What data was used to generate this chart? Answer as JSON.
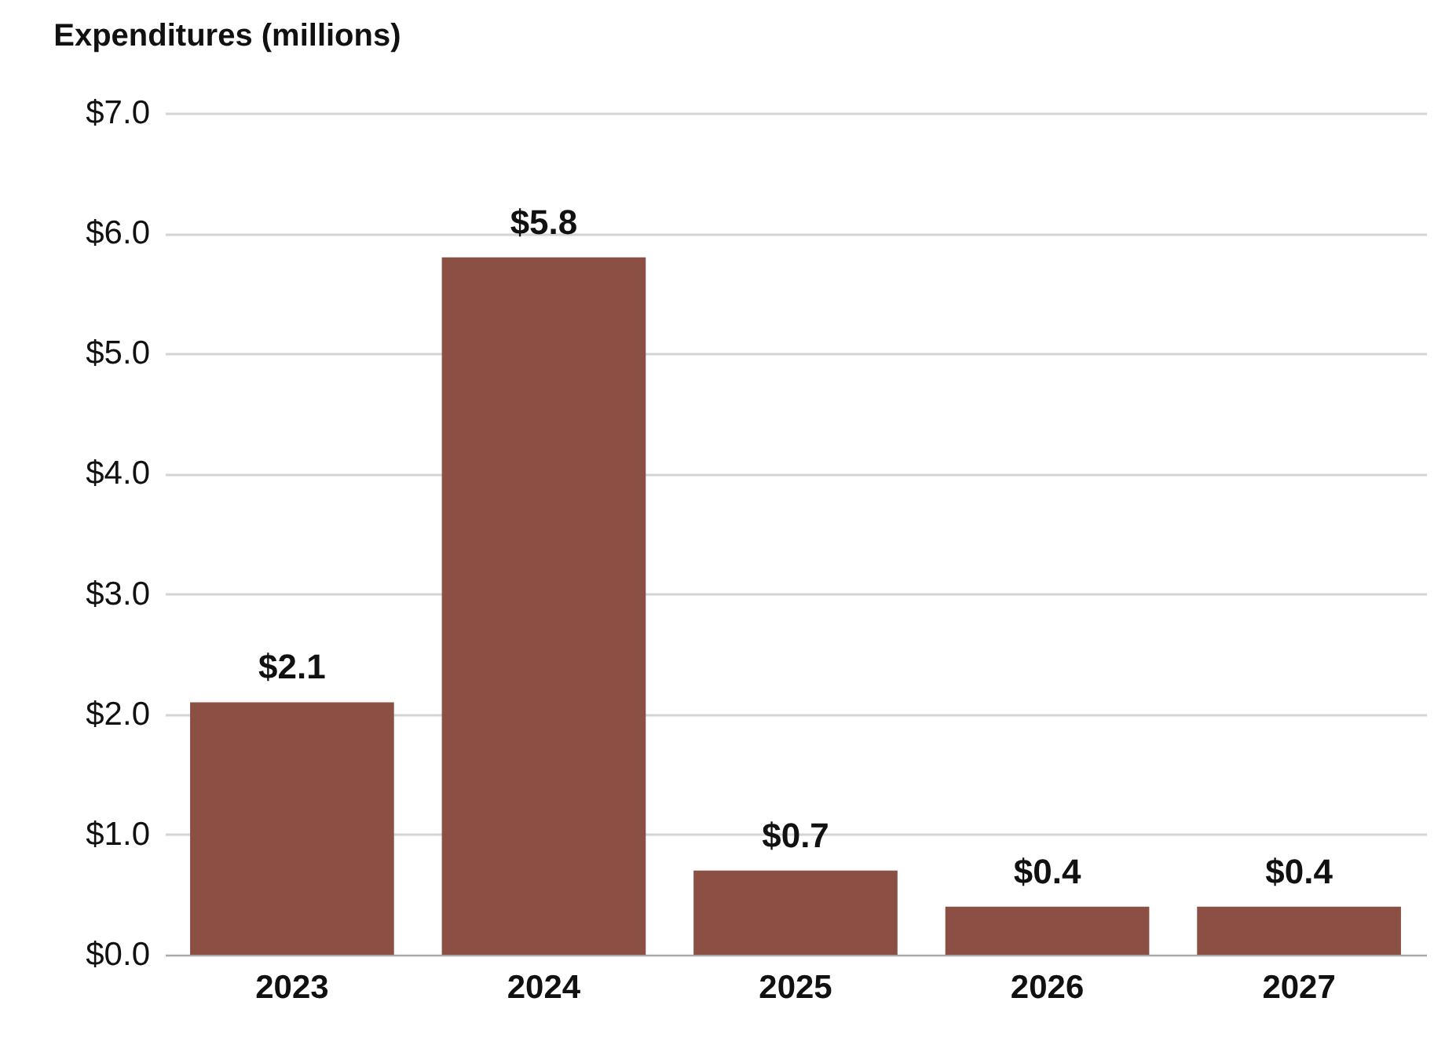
{
  "chart_data": {
    "type": "bar",
    "title": "Expenditures (millions)",
    "categories": [
      "2023",
      "2024",
      "2025",
      "2026",
      "2027"
    ],
    "values": [
      2.1,
      5.8,
      0.7,
      0.4,
      0.4
    ],
    "value_labels": [
      "$2.1",
      "$5.8",
      "$0.7",
      "$0.4",
      "$0.4"
    ],
    "color": "#8b4f44",
    "ylim": [
      0,
      7
    ],
    "yticks": [
      {
        "value": 0,
        "label": "$0.0"
      },
      {
        "value": 1,
        "label": "$1.0"
      },
      {
        "value": 2,
        "label": "$2.0"
      },
      {
        "value": 3,
        "label": "$3.0"
      },
      {
        "value": 4,
        "label": "$4.0"
      },
      {
        "value": 5,
        "label": "$5.0"
      },
      {
        "value": 6,
        "label": "$6.0"
      },
      {
        "value": 7,
        "label": "$7.0"
      }
    ],
    "grid": "y"
  }
}
